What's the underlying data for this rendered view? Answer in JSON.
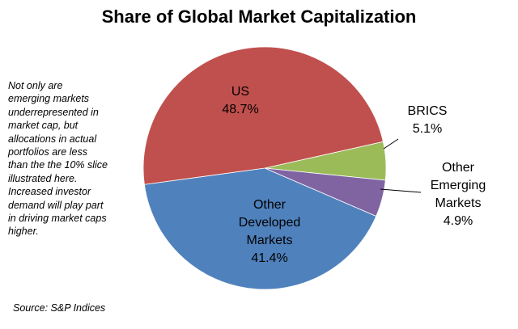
{
  "chart_data": {
    "type": "pie",
    "title": "Share of Global Market Capitalization",
    "slices": [
      {
        "label_lines": [
          "BRICS"
        ],
        "value_text": "5.1%",
        "value": 5.1,
        "color": "#9bbb59"
      },
      {
        "label_lines": [
          "Other",
          "Emerging",
          "Markets"
        ],
        "value_text": "4.9%",
        "value": 4.9,
        "color": "#8064a2"
      },
      {
        "label_lines": [
          "Other",
          "Developed",
          "Markets"
        ],
        "value_text": "41.4%",
        "value": 41.4,
        "color": "#4f81bd"
      },
      {
        "label_lines": [
          "US"
        ],
        "value_text": "48.7%",
        "value": 48.7,
        "color": "#c0504d"
      }
    ],
    "legend": "none"
  },
  "note": {
    "lines": [
      "Not only are",
      "emerging markets",
      "underrepresented in",
      "market cap, but",
      "allocations in actual",
      "portfolios are less",
      "than the the 10% slice",
      "illustrated here.",
      "Increased investor",
      "demand will play part",
      "in driving market caps",
      "higher."
    ]
  },
  "source": "Source: S&P Indices"
}
